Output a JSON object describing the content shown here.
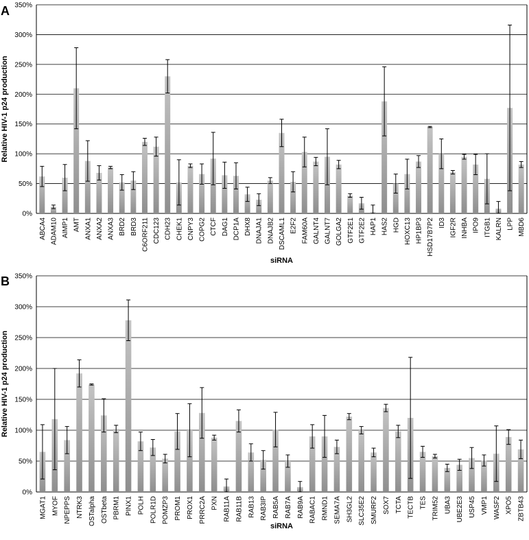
{
  "chart_data": [
    {
      "type": "bar",
      "panel_label": "A",
      "xlabel": "siRNA",
      "ylabel": "Relative HIV-1 p24 production",
      "ylim": [
        0,
        350
      ],
      "yticks": [
        "0%",
        "50%",
        "100%",
        "150%",
        "200%",
        "250%",
        "300%",
        "350%"
      ],
      "grid": true,
      "bar_color": "#a8a8a8",
      "categories": [
        "ABCA4",
        "ADAM10",
        "AIMP1",
        "AMT",
        "ANXA1",
        "ANXA2",
        "ANXA3",
        "BRD2",
        "BRD3",
        "C6ORF211",
        "CDC123",
        "CDH23",
        "CHEK1",
        "CNPY3",
        "COPG2",
        "CTCF",
        "DAG1",
        "DCP1A",
        "DHX8",
        "DNAJA1",
        "DNAJB2",
        "DSCAML1",
        "E2F2",
        "FAM60A",
        "GALNT4",
        "GALNT7",
        "GOLGA2",
        "GTF2E1",
        "GTF2E2",
        "HAP1",
        "HAS2",
        "HGD",
        "HOXC13",
        "HP1BP3",
        "HSD17B7P2",
        "ID3",
        "IGF2R",
        "INHBA",
        "IPO9",
        "ITGB1",
        "KALRN",
        "LPP",
        "MBD6"
      ],
      "values": [
        62,
        11,
        60,
        210,
        88,
        68,
        77,
        52,
        55,
        120,
        112,
        230,
        52,
        80,
        66,
        92,
        64,
        63,
        32,
        23,
        55,
        135,
        53,
        103,
        87,
        95,
        82,
        30,
        17,
        2,
        188,
        50,
        66,
        87,
        145,
        100,
        69,
        95,
        82,
        58,
        8,
        177,
        82
      ],
      "errors": [
        17,
        3,
        22,
        68,
        34,
        12,
        2,
        13,
        15,
        6,
        16,
        28,
        38,
        3,
        17,
        44,
        22,
        22,
        12,
        10,
        5,
        23,
        17,
        25,
        7,
        47,
        7,
        3,
        10,
        12,
        58,
        16,
        25,
        10,
        1,
        25,
        3,
        4,
        17,
        42,
        12,
        139,
        5
      ]
    },
    {
      "type": "bar",
      "panel_label": "B",
      "xlabel": "siRNA",
      "ylabel": "Relative HIV-1 p24 production",
      "ylim": [
        0,
        350
      ],
      "yticks": [
        "0%",
        "50%",
        "100%",
        "150%",
        "200%",
        "250%",
        "300%",
        "350%"
      ],
      "grid": true,
      "bar_color": "#a8a8a8",
      "categories": [
        "MGAT1",
        "MYOF",
        "NPEPPS",
        "NTRK3",
        "OSTalpha",
        "OSTbeta",
        "PBRM1",
        "PINX1",
        "POLH",
        "POLR1D",
        "POMZP3",
        "PROM1",
        "PROX1",
        "PRRC2A",
        "PXN",
        "RAB11A",
        "RAB11B",
        "RAB13",
        "RAB3IP",
        "RAB5A",
        "RAB7A",
        "RAB9A",
        "RABAC1",
        "RMND1",
        "SEMA7A",
        "SH3GL2",
        "SLC35E2",
        "SMURF2",
        "SOX7",
        "TCTA",
        "TECTB",
        "TES",
        "TRIM52",
        "UBA3",
        "UBE2E3",
        "USP45",
        "VMP1",
        "WASF2",
        "XPO5",
        "ZBTB43"
      ],
      "values": [
        65,
        118,
        84,
        192,
        174,
        124,
        102,
        278,
        82,
        72,
        54,
        98,
        100,
        128,
        88,
        9,
        115,
        64,
        52,
        101,
        50,
        8,
        90,
        90,
        73,
        122,
        100,
        64,
        136,
        98,
        120,
        65,
        58,
        39,
        44,
        55,
        51,
        62,
        89,
        69
      ],
      "errors": [
        44,
        82,
        22,
        22,
        1,
        27,
        6,
        33,
        15,
        13,
        7,
        29,
        43,
        41,
        4,
        12,
        18,
        14,
        15,
        28,
        10,
        9,
        19,
        34,
        11,
        5,
        6,
        7,
        6,
        10,
        98,
        9,
        3,
        6,
        9,
        17,
        9,
        45,
        12,
        15
      ]
    }
  ]
}
